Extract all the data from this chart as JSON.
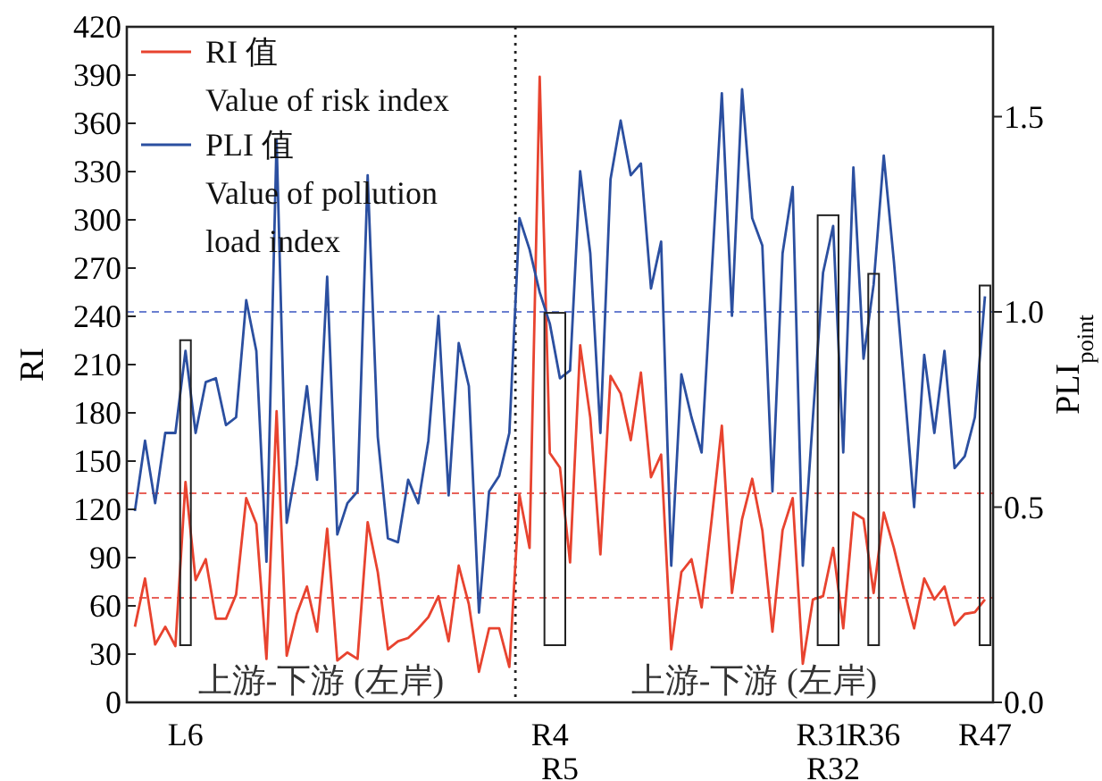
{
  "chart_data": {
    "type": "line",
    "ylabel": "RI",
    "y2label": "PLI$_{point}$",
    "annotations": [
      "上游-下游 (左岸)",
      "上游-下游 (左岸)"
    ],
    "categories": [
      null,
      null,
      null,
      null,
      null,
      "L6",
      null,
      null,
      null,
      null,
      null,
      null,
      null,
      null,
      null,
      null,
      null,
      null,
      null,
      null,
      null,
      null,
      null,
      null,
      null,
      null,
      null,
      null,
      null,
      null,
      null,
      null,
      null,
      null,
      null,
      null,
      null,
      null,
      null,
      null,
      null,
      "R4",
      "R5",
      null,
      null,
      null,
      null,
      null,
      null,
      null,
      null,
      null,
      null,
      null,
      null,
      null,
      null,
      null,
      null,
      null,
      null,
      null,
      null,
      null,
      null,
      null,
      null,
      null,
      "R31",
      "R32",
      null,
      null,
      null,
      "R36",
      null,
      null,
      null,
      null,
      null,
      null,
      null,
      null,
      null,
      null,
      "R47"
    ],
    "ylim": [
      0,
      420
    ],
    "yticks": [
      0,
      30,
      60,
      90,
      120,
      150,
      180,
      210,
      240,
      270,
      300,
      330,
      360,
      390,
      420
    ],
    "y2lim": [
      0,
      1.73
    ],
    "y2ticks": [
      {
        "value": 0,
        "label": "0.0"
      },
      {
        "value": 0.5,
        "label": "0.5"
      },
      {
        "value": 1,
        "label": "1.0"
      },
      {
        "value": 1.5,
        "label": "1.5"
      }
    ],
    "series": [
      {
        "name": "RI 值\nValue of risk index",
        "color": "#e8432f",
        "axis": "y",
        "values": [
          47,
          77,
          36,
          47,
          35,
          137,
          76,
          89,
          52,
          52,
          67,
          127,
          111,
          27,
          181,
          29,
          55,
          72,
          44,
          108,
          26,
          31,
          27,
          112,
          81,
          33,
          38,
          40,
          46,
          53,
          66,
          38,
          85,
          61,
          19,
          46,
          46,
          22,
          129,
          96,
          389,
          155,
          146,
          87,
          222,
          177,
          92,
          203,
          192,
          163,
          205,
          140,
          154,
          33,
          81,
          89,
          59,
          114,
          172,
          68,
          114,
          139,
          107,
          44,
          107,
          127,
          24,
          64,
          66,
          96,
          46,
          118,
          114,
          68,
          118,
          96,
          70,
          46,
          77,
          64,
          72,
          48,
          55,
          56,
          64
        ]
      },
      {
        "name": "PLI 值\nValue of pollution\nload index",
        "color": "#2b4fa0",
        "axis": "y2",
        "values": [
          0.49,
          0.67,
          0.51,
          0.69,
          0.69,
          0.9,
          0.69,
          0.82,
          0.83,
          0.71,
          0.73,
          1.03,
          0.9,
          0.36,
          1.44,
          0.46,
          0.61,
          0.81,
          0.57,
          1.09,
          0.43,
          0.51,
          0.54,
          1.35,
          0.68,
          0.42,
          0.41,
          0.57,
          0.51,
          0.67,
          0.99,
          0.53,
          0.92,
          0.81,
          0.23,
          0.54,
          0.58,
          0.69,
          1.24,
          1.16,
          1.05,
          0.97,
          0.83,
          0.85,
          1.36,
          1.15,
          0.69,
          1.34,
          1.49,
          1.35,
          1.38,
          1.06,
          1.18,
          0.35,
          0.84,
          0.73,
          0.64,
          1.1,
          1.56,
          0.99,
          1.57,
          1.24,
          1.17,
          0.54,
          1.15,
          1.32,
          0.35,
          0.73,
          1.1,
          1.22,
          0.64,
          1.37,
          0.88,
          1.07,
          1.4,
          1.13,
          0.82,
          0.5,
          0.89,
          0.69,
          0.9,
          0.6,
          0.63,
          0.73,
          1.04
        ]
      }
    ],
    "ref_lines": [
      {
        "axis": "y2",
        "value": 1,
        "color": "#6a7fd0",
        "line_style": "dashed"
      },
      {
        "axis": "y",
        "value": 130,
        "color": "#e8625a",
        "line_style": "dashed"
      },
      {
        "axis": "y",
        "value": 65,
        "color": "#e8625a",
        "line_style": "dashed"
      }
    ],
    "legend": "top left",
    "grid": false,
    "marker": "none",
    "line_style": "solid"
  }
}
